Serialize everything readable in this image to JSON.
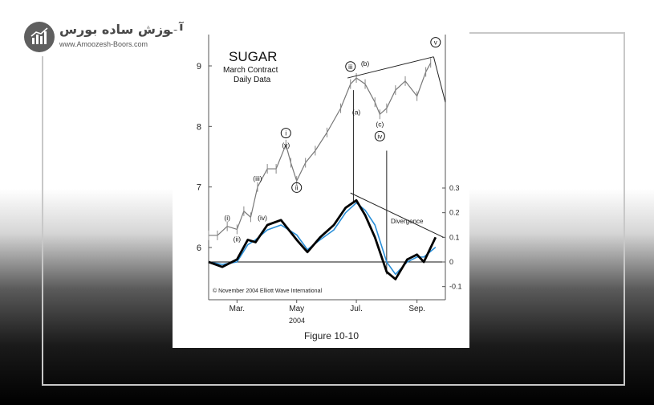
{
  "logo": {
    "name_fa": "آموزش ساده بورس",
    "url": "www.Amoozesh-Boors.com",
    "icon": "chart-globe-icon"
  },
  "chart_data": {
    "type": "line",
    "title": "SUGAR",
    "subtitle_lines": [
      "March Contract",
      "Daily Data"
    ],
    "caption": "Figure 10-10",
    "copyright": "© November 2004 Elliott Wave International",
    "x_ticks": [
      "Mar.",
      "May",
      "Jul.",
      "Sep."
    ],
    "x_year": "2004",
    "price_axis": {
      "ticks": [
        9,
        8,
        7,
        6
      ],
      "ylim": [
        5.0,
        9.6
      ],
      "side": "left"
    },
    "osc_axis": {
      "ticks": [
        0.3,
        0.2,
        0.1,
        0,
        -0.1
      ],
      "ylim": [
        -0.15,
        0.35
      ],
      "side": "right"
    },
    "x_range": [
      "2004-02-01",
      "2004-09-30"
    ],
    "price": {
      "x": [
        "2004-02-01",
        "2004-02-10",
        "2004-02-20",
        "2004-03-01",
        "2004-03-08",
        "2004-03-15",
        "2004-03-22",
        "2004-04-01",
        "2004-04-10",
        "2004-04-20",
        "2004-04-25",
        "2004-05-01",
        "2004-05-10",
        "2004-05-20",
        "2004-06-01",
        "2004-06-15",
        "2004-06-25",
        "2004-07-01",
        "2004-07-10",
        "2004-07-20",
        "2004-07-25",
        "2004-08-01",
        "2004-08-10",
        "2004-08-20",
        "2004-09-01",
        "2004-09-10",
        "2004-09-15"
      ],
      "values": [
        6.2,
        6.2,
        6.35,
        6.3,
        6.6,
        6.5,
        7.0,
        7.3,
        7.3,
        7.7,
        7.4,
        7.1,
        7.4,
        7.6,
        7.9,
        8.3,
        8.7,
        8.8,
        8.7,
        8.4,
        8.2,
        8.3,
        8.6,
        8.75,
        8.5,
        8.9,
        9.05
      ]
    },
    "oscillator": {
      "series": [
        {
          "values": [
            0.0,
            -0.01,
            0.0,
            0.07,
            0.09,
            0.13,
            0.15,
            0.11,
            0.05,
            0.09,
            0.13,
            0.2,
            0.24,
            0.21,
            0.15,
            0.0,
            -0.05,
            0.0,
            0.02,
            0.02,
            0.06
          ]
        },
        {
          "values": [
            0.0,
            -0.02,
            0.01,
            0.09,
            0.08,
            0.15,
            0.17,
            0.09,
            0.04,
            0.1,
            0.15,
            0.22,
            0.25,
            0.19,
            0.1,
            -0.04,
            -0.07,
            0.01,
            0.03,
            0.0,
            0.1
          ]
        }
      ],
      "x": [
        "2004-02-01",
        "2004-02-15",
        "2004-03-01",
        "2004-03-12",
        "2004-03-20",
        "2004-04-01",
        "2004-04-15",
        "2004-05-01",
        "2004-05-12",
        "2004-05-25",
        "2004-06-08",
        "2004-06-20",
        "2004-07-01",
        "2004-07-10",
        "2004-07-20",
        "2004-08-01",
        "2004-08-10",
        "2004-08-22",
        "2004-09-01",
        "2004-09-08",
        "2004-09-20"
      ]
    },
    "wave_labels": [
      {
        "text": "(i)",
        "date": "2004-02-20",
        "y": 6.45,
        "circled": false
      },
      {
        "text": "(ii)",
        "date": "2004-03-01",
        "y": 6.1,
        "circled": false
      },
      {
        "text": "(iii)",
        "date": "2004-03-22",
        "y": 7.1,
        "circled": false
      },
      {
        "text": "(iv)",
        "date": "2004-03-27",
        "y": 6.45,
        "circled": false
      },
      {
        "text": "(v)",
        "date": "2004-04-20",
        "y": 7.65,
        "circled": false
      },
      {
        "text": "i",
        "date": "2004-04-20",
        "y": 7.85,
        "circled": true
      },
      {
        "text": "ii",
        "date": "2004-05-01",
        "y": 6.95,
        "circled": true
      },
      {
        "text": "iii",
        "date": "2004-06-25",
        "y": 8.95,
        "circled": true
      },
      {
        "text": "(b)",
        "date": "2004-07-10",
        "y": 9.0,
        "circled": false
      },
      {
        "text": "(a)",
        "date": "2004-07-01",
        "y": 8.2,
        "circled": false
      },
      {
        "text": "(c)",
        "date": "2004-07-25",
        "y": 8.0,
        "circled": false
      },
      {
        "text": "iv",
        "date": "2004-07-25",
        "y": 7.8,
        "circled": true
      },
      {
        "text": "v",
        "date": "2004-09-20",
        "y": 9.35,
        "circled": true
      }
    ],
    "annotations": {
      "divergence": "Divergence"
    },
    "colors": {
      "oscillator_fast": "#2a8fd8",
      "oscillator_slow": "#000000",
      "price": "#777777"
    }
  }
}
